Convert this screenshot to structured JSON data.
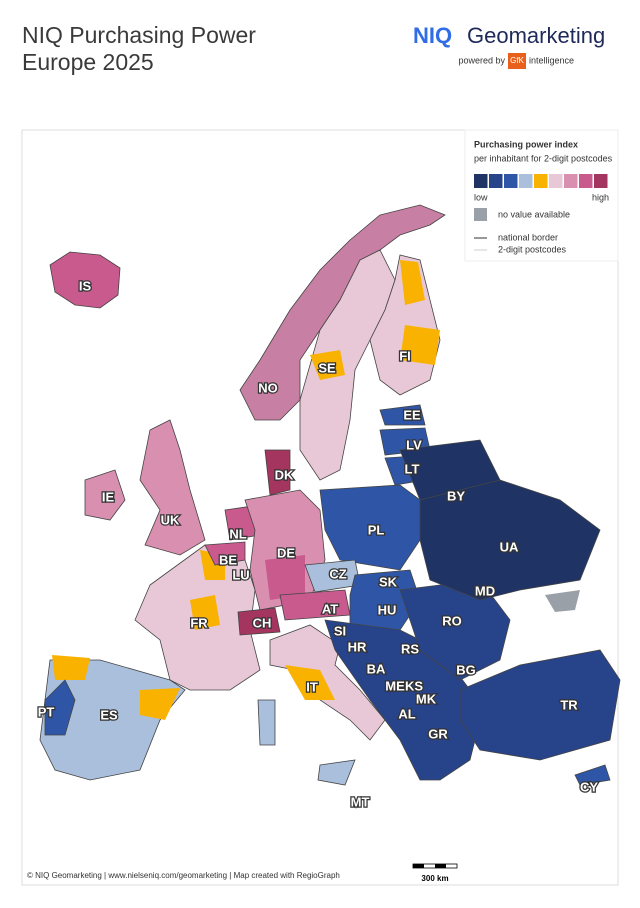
{
  "header": {
    "title_line1": "NIQ Purchasing Power",
    "title_line2": "Europe 2025",
    "brand_niq": "NIQ",
    "brand_name": "Geomarketing",
    "powered_by": "powered by",
    "gfk": "GfK",
    "intelligence": "intelligence"
  },
  "legend": {
    "title": "Purchasing power index",
    "subtitle": "per inhabitant for 2-digit postcodes",
    "colors": [
      "#1f3464",
      "#27438a",
      "#2f56a6",
      "#a9bfdc",
      "#f9b200",
      "#e8c8d6",
      "#d98fb0",
      "#c95a8d",
      "#a3355f"
    ],
    "low": "low",
    "high": "high",
    "no_value": "no value available",
    "national_border": "national border",
    "postcodes": "2-digit postcodes"
  },
  "countries": [
    "IS",
    "NO",
    "SE",
    "FI",
    "EE",
    "LV",
    "LT",
    "DK",
    "IE",
    "UK",
    "NL",
    "BE",
    "LU",
    "DE",
    "PL",
    "BY",
    "UA",
    "CZ",
    "SK",
    "AT",
    "HU",
    "MD",
    "FR",
    "CH",
    "SI",
    "RO",
    "HR",
    "RS",
    "BA",
    "BG",
    "ME",
    "KS",
    "MK",
    "IT",
    "AL",
    "PT",
    "ES",
    "TR",
    "GR",
    "CY",
    "MT"
  ],
  "footer": {
    "credit": "© NIQ Geomarketing | www.nielseniq.com/geomarketing | Map created with RegioGraph",
    "scale": "300 km"
  }
}
